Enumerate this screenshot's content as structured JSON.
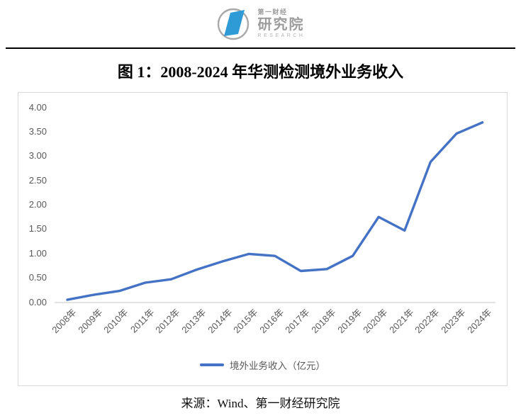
{
  "header": {
    "logo": {
      "line1": "第一财经",
      "line2": "研究院",
      "line3": "RESEARCH",
      "mark_color": "#2e9bd6",
      "ring_color": "#a9a9a9"
    }
  },
  "title": "图 1：2008-2024 年华测检测境外业务收入",
  "source": "来源：Wind、第一财经研究院",
  "chart_data": {
    "type": "line",
    "title": "",
    "xlabel": "",
    "ylabel": "",
    "categories": [
      "2008年",
      "2009年",
      "2010年",
      "2011年",
      "2012年",
      "2013年",
      "2014年",
      "2015年",
      "2016年",
      "2017年",
      "2018年",
      "2019年",
      "2020年",
      "2021年",
      "2022年",
      "2023年",
      "2024年"
    ],
    "series": [
      {
        "name": "境外业务收入（亿元）",
        "values": [
          0.05,
          0.15,
          0.23,
          0.4,
          0.47,
          0.67,
          0.84,
          0.99,
          0.95,
          0.64,
          0.68,
          0.95,
          1.75,
          1.47,
          2.88,
          3.46,
          3.69
        ]
      }
    ],
    "ylim": [
      0,
      4
    ],
    "ytick_step": 0.5,
    "ytick_labels": [
      "0.00",
      "0.50",
      "1.00",
      "1.50",
      "2.00",
      "2.50",
      "3.00",
      "3.50",
      "4.00"
    ],
    "grid": false,
    "legend_position": "bottom",
    "line_color": "#4472c4",
    "axis_label_color": "#595959",
    "axis_line_color": "#d9d9d9",
    "frame_border_color": "#d9d9d9"
  }
}
